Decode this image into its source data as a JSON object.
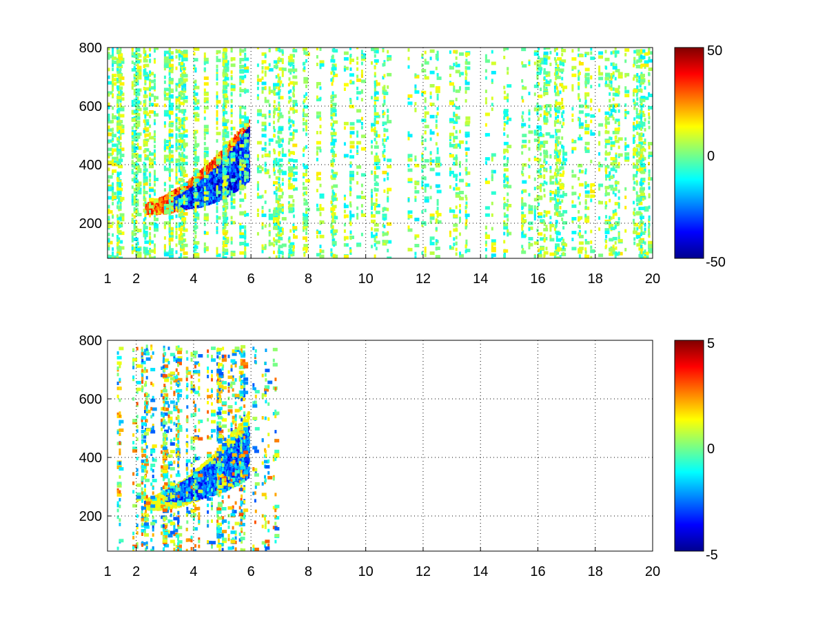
{
  "chart_data": [
    {
      "type": "heatmap",
      "xlim": [
        1,
        20
      ],
      "ylim": [
        80,
        800
      ],
      "x_ticks": [
        1,
        2,
        4,
        6,
        8,
        10,
        12,
        14,
        16,
        18,
        20
      ],
      "y_ticks": [
        200,
        400,
        600,
        800
      ],
      "grid": true,
      "grid_style": "dotted",
      "colormap": "jet",
      "colorbar": {
        "range": [
          -50,
          50
        ],
        "ticks": [
          -50,
          0,
          50
        ],
        "placement": "right"
      },
      "features": [
        {
          "kind": "ridge",
          "x_range": [
            2.3,
            5.9
          ],
          "y_range": [
            240,
            560
          ],
          "value": 35,
          "description_value_sign": "positive"
        },
        {
          "kind": "ridge",
          "x_range": [
            3.3,
            5.9
          ],
          "y_range": [
            260,
            480
          ],
          "value": -40,
          "description_value_sign": "negative"
        },
        {
          "kind": "scatter_noise",
          "x_range": [
            1,
            20
          ],
          "y_range": [
            80,
            800
          ],
          "value_range": [
            -15,
            15
          ]
        }
      ]
    },
    {
      "type": "heatmap",
      "xlim": [
        1,
        20
      ],
      "ylim": [
        80,
        800
      ],
      "x_ticks": [
        1,
        2,
        4,
        6,
        8,
        10,
        12,
        14,
        16,
        18,
        20
      ],
      "y_ticks": [
        200,
        400,
        600,
        800
      ],
      "grid": true,
      "grid_style": "dotted",
      "colormap": "jet",
      "colorbar": {
        "range": [
          -5,
          5
        ],
        "ticks": [
          -5,
          0,
          5
        ],
        "placement": "right"
      },
      "features": [
        {
          "kind": "ridge",
          "x_range": [
            2.3,
            5.9
          ],
          "y_range": [
            230,
            560
          ],
          "value": 1.5
        },
        {
          "kind": "ridge",
          "x_range": [
            3.0,
            5.9
          ],
          "y_range": [
            260,
            460
          ],
          "value": -3.5
        },
        {
          "kind": "scatter_noise",
          "x_range": [
            1.3,
            7.0
          ],
          "y_range": [
            80,
            780
          ],
          "value_range": [
            -3,
            3
          ]
        }
      ]
    }
  ],
  "panels": [
    {
      "x_tick_labels": [
        "1",
        "2",
        "4",
        "6",
        "8",
        "10",
        "12",
        "14",
        "16",
        "18",
        "20"
      ],
      "y_tick_labels": [
        "200",
        "400",
        "600",
        "800"
      ],
      "colorbar_labels": [
        "-50",
        "0",
        "50"
      ]
    },
    {
      "x_tick_labels": [
        "1",
        "2",
        "4",
        "6",
        "8",
        "10",
        "12",
        "14",
        "16",
        "18",
        "20"
      ],
      "y_tick_labels": [
        "200",
        "400",
        "600",
        "800"
      ],
      "colorbar_labels": [
        "-5",
        "0",
        "5"
      ]
    }
  ]
}
